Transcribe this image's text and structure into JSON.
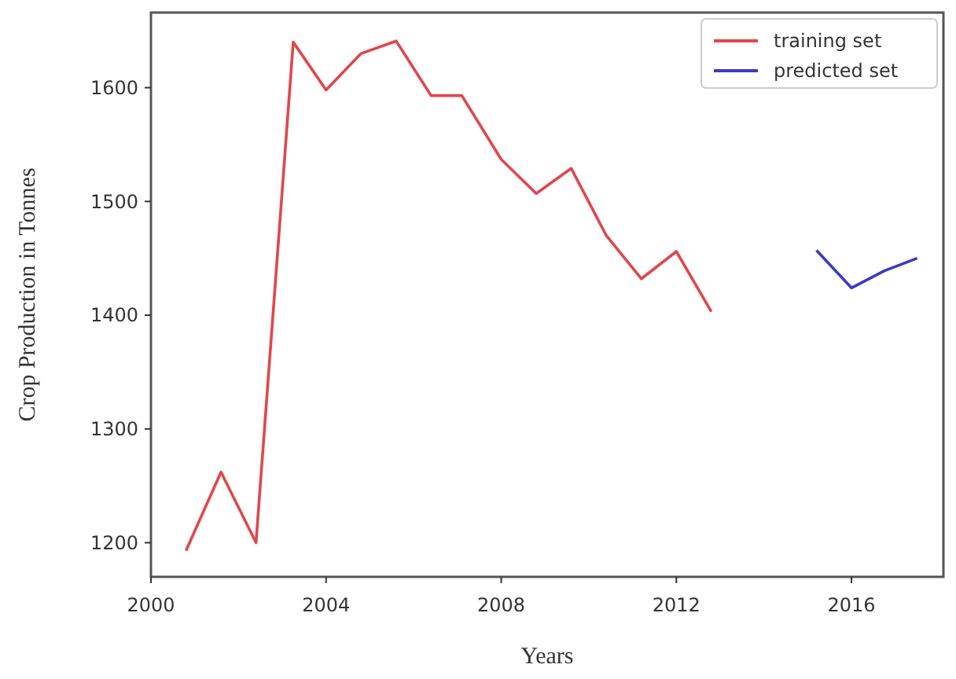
{
  "chart_data": {
    "type": "line",
    "xlabel": "Years",
    "ylabel": "Crop Production in Tonnes",
    "xlim": [
      2000,
      2018.1
    ],
    "ylim": [
      1170,
      1666
    ],
    "xticks": [
      2000,
      2004,
      2008,
      2012,
      2016
    ],
    "yticks": [
      1200,
      1300,
      1400,
      1500,
      1600
    ],
    "grid": false,
    "legend": "top right",
    "series": [
      {
        "name": "training set",
        "color": "#e0474c",
        "x": [
          2000.8,
          2001.6,
          2002.4,
          2003.25,
          2004,
          2004.8,
          2005.6,
          2006.4,
          2007.1,
          2008,
          2008.8,
          2009.6,
          2010.4,
          2011.2,
          2012,
          2012.8
        ],
        "values": [
          1193,
          1262,
          1200,
          1640,
          1598,
          1630,
          1641,
          1593,
          1593,
          1537,
          1507,
          1529,
          1470,
          1432,
          1456,
          1403
        ]
      },
      {
        "name": "predicted set",
        "color": "#3a3ac8",
        "x": [
          2015.2,
          2016,
          2016.75,
          2017.5
        ],
        "values": [
          1457,
          1424,
          1439,
          1450
        ]
      }
    ]
  }
}
